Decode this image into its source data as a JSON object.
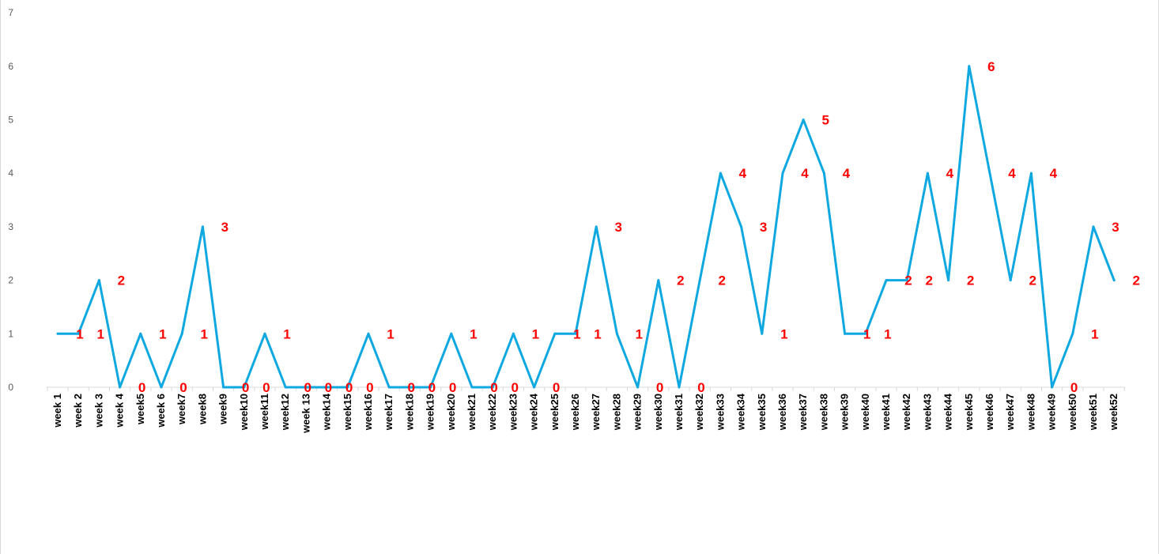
{
  "chart_data": {
    "type": "line",
    "title": "",
    "xlabel": "",
    "ylabel": "",
    "ylim": [
      0,
      7
    ],
    "yticks": [
      0,
      1,
      2,
      3,
      4,
      5,
      6,
      7
    ],
    "grid": false,
    "legend": "none",
    "categories": [
      "week 1",
      "week 2",
      "week 3",
      "week 4",
      "week5",
      "week 6",
      "week7",
      "week8",
      "week9",
      "week10",
      "week11",
      "week12",
      "week 13",
      "week14",
      "week15",
      "week16",
      "week17",
      "week18",
      "week19",
      "week20",
      "week21",
      "week22",
      "week23",
      "week24",
      "week25",
      "week26",
      "week27",
      "week28",
      "week29",
      "week30",
      "week31",
      "week32",
      "week33",
      "week34",
      "week35",
      "week36",
      "week37",
      "week38",
      "week39",
      "week40",
      "week41",
      "week42",
      "week43",
      "week44",
      "week45",
      "week46",
      "week47",
      "week48",
      "week49",
      "week50",
      "week51",
      "week52"
    ],
    "series": [
      {
        "values": [
          1,
          1,
          2,
          0,
          1,
          0,
          1,
          3,
          0,
          0,
          1,
          0,
          0,
          0,
          0,
          1,
          0,
          0,
          0,
          1,
          0,
          0,
          1,
          0,
          1,
          1,
          3,
          1,
          0,
          2,
          0,
          2,
          4,
          3,
          1,
          4,
          5,
          4,
          1,
          1,
          2,
          2,
          4,
          2,
          6,
          4,
          2,
          4,
          0,
          1,
          3,
          2
        ]
      }
    ],
    "data_labels": [
      1,
      1,
      2,
      0,
      1,
      0,
      1,
      3,
      0,
      0,
      1,
      0,
      0,
      0,
      0,
      1,
      0,
      0,
      0,
      1,
      0,
      0,
      1,
      0,
      1,
      1,
      3,
      1,
      0,
      2,
      0,
      2,
      4,
      3,
      1,
      4,
      5,
      4,
      1,
      1,
      2,
      2,
      4,
      2,
      6,
      4,
      2,
      4,
      0,
      1,
      3,
      2
    ],
    "colors": {
      "line": "#0fa8e0",
      "labels": "#ff0000",
      "axis": "#d9d9d9",
      "tick_text": "#595959"
    }
  }
}
